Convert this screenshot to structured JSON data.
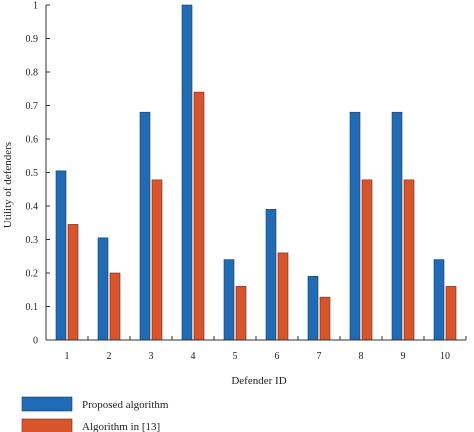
{
  "chart_data": {
    "type": "bar",
    "categories": [
      "1",
      "2",
      "3",
      "4",
      "5",
      "6",
      "7",
      "8",
      "9",
      "10"
    ],
    "series": [
      {
        "name": "Proposed algorithm",
        "color": "#1f6bb5",
        "values": [
          0.505,
          0.305,
          0.68,
          1.0,
          0.24,
          0.39,
          0.19,
          0.68,
          0.68,
          0.24
        ]
      },
      {
        "name": "Algorithm in [13]",
        "color": "#d9542b",
        "values": [
          0.345,
          0.2,
          0.478,
          0.74,
          0.16,
          0.26,
          0.128,
          0.478,
          0.478,
          0.16
        ]
      }
    ],
    "xlabel": "Defender ID",
    "ylabel": "Utility of defenders",
    "ylim": [
      0,
      1
    ],
    "yticks": [
      "0",
      "0.1",
      "0.2",
      "0.3",
      "0.4",
      "0.5",
      "0.6",
      "0.7",
      "0.8",
      "0.9",
      "1"
    ],
    "grid": false,
    "legend_position": "bottom-left"
  }
}
